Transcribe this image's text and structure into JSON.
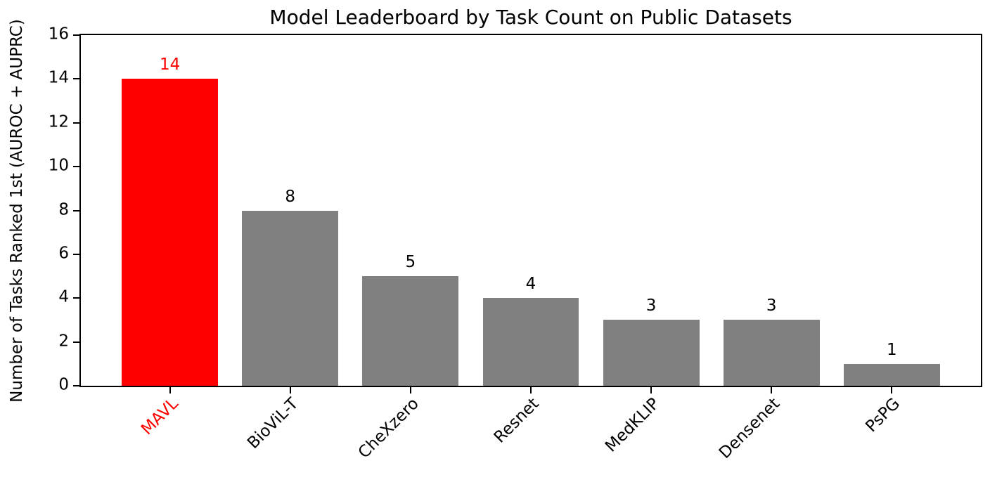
{
  "chart_data": {
    "type": "bar",
    "title": "Model Leaderboard by Task Count on Public Datasets",
    "ylabel": "Number of Tasks Ranked 1st (AUROC + AUPRC)",
    "xlabel": "",
    "categories": [
      "MAVL",
      "BioViL-T",
      "CheXzero",
      "Resnet",
      "MedKLIP",
      "Densenet",
      "PsPG"
    ],
    "values": [
      14,
      8,
      5,
      4,
      3,
      3,
      1
    ],
    "bar_value_labels": [
      "14",
      "8",
      "5",
      "4",
      "3",
      "3",
      "1"
    ],
    "ylim": [
      0,
      16
    ],
    "yticks": [
      0,
      2,
      4,
      6,
      8,
      10,
      12,
      14,
      16
    ],
    "grid": false,
    "legend": null,
    "x_tick_rotation_deg": 45,
    "highlight_index": 0,
    "colors": {
      "highlight_bar": "#ff0000",
      "default_bar": "#808080",
      "highlight_text": "#ff0000",
      "text": "#000000",
      "spine": "#000000",
      "background": "#ffffff"
    }
  }
}
